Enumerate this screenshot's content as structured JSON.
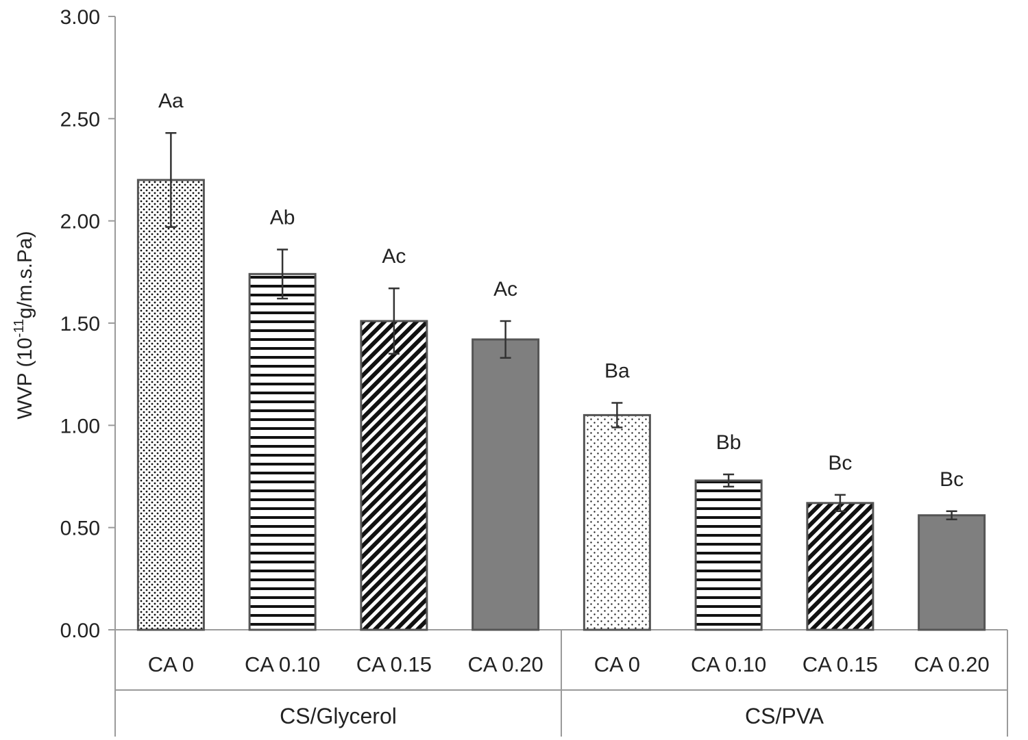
{
  "chart_data": {
    "type": "bar",
    "title": "",
    "xlabel": "",
    "ylabel": "WVP (10",
    "ylabel_sup": "-11",
    "ylabel_tail": "g/m.s.Pa)",
    "ylim": [
      0,
      3.0
    ],
    "yticks": [
      "0.00",
      "0.50",
      "1.00",
      "1.50",
      "2.00",
      "2.50",
      "3.00"
    ],
    "ytick_values": [
      0,
      0.5,
      1.0,
      1.5,
      2.0,
      2.5,
      3.0
    ],
    "grid": false,
    "groups": [
      {
        "name": "CS/Glycerol",
        "bars": [
          {
            "category": "CA 0",
            "value": 2.2,
            "error": 0.23,
            "letter": "Aa",
            "pattern": "dots-dense"
          },
          {
            "category": "CA 0.10",
            "value": 1.74,
            "error": 0.12,
            "letter": "Ab",
            "pattern": "horizontal-stripes"
          },
          {
            "category": "CA 0.15",
            "value": 1.51,
            "error": 0.16,
            "letter": "Ac",
            "pattern": "diagonal-stripes"
          },
          {
            "category": "CA 0.20",
            "value": 1.42,
            "error": 0.09,
            "letter": "Ac",
            "pattern": "solid-gray"
          }
        ]
      },
      {
        "name": "CS/PVA",
        "bars": [
          {
            "category": "CA 0",
            "value": 1.05,
            "error": 0.06,
            "letter": "Ba",
            "pattern": "dots-sparse"
          },
          {
            "category": "CA 0.10",
            "value": 0.73,
            "error": 0.03,
            "letter": "Bb",
            "pattern": "horizontal-stripes"
          },
          {
            "category": "CA 0.15",
            "value": 0.62,
            "error": 0.04,
            "letter": "Bc",
            "pattern": "diagonal-stripes"
          },
          {
            "category": "CA 0.20",
            "value": 0.56,
            "error": 0.02,
            "letter": "Bc",
            "pattern": "solid-gray"
          }
        ]
      }
    ],
    "colors": {
      "axis": "#9a9a9a",
      "bar_outline": "#555555",
      "solid_fill": "#7f7f7f",
      "pattern_ink": "#111111",
      "error_bar": "#333333",
      "text": "#222222"
    }
  }
}
